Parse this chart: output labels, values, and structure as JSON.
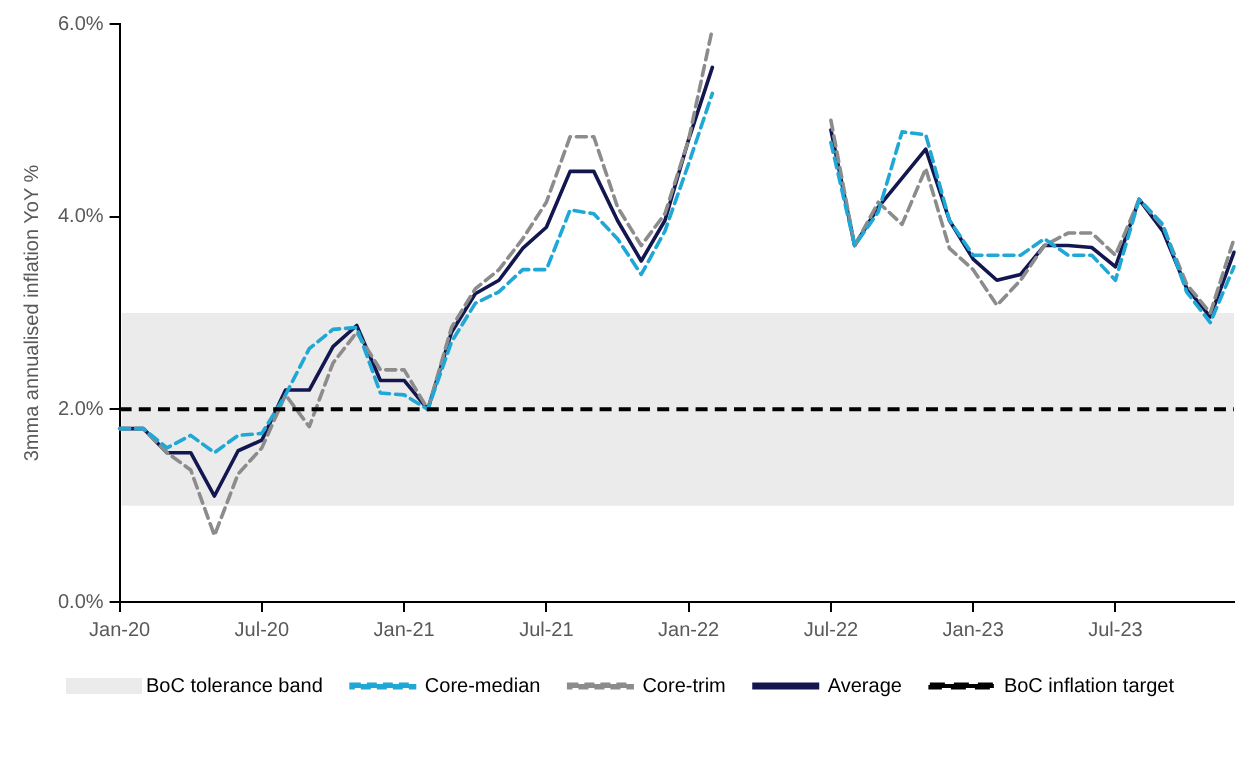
{
  "chart_data": {
    "type": "line",
    "ylabel": "3mma annualised inflation YoY %",
    "categories": [
      "Jan-20",
      null,
      null,
      null,
      null,
      null,
      "Jul-20",
      null,
      null,
      null,
      null,
      null,
      "Jan-21",
      null,
      null,
      null,
      null,
      null,
      "Jul-21",
      null,
      null,
      null,
      null,
      null,
      "Jan-22",
      null,
      null,
      null,
      null,
      null,
      "Jul-22",
      null,
      null,
      null,
      null,
      null,
      "Jan-23",
      null,
      null,
      null,
      null,
      null,
      "Jul-23",
      null,
      null,
      null,
      null,
      null
    ],
    "series": [
      {
        "name": "Core-median",
        "color": "#1fa7d6",
        "line_style": "dashed",
        "values": [
          1.8,
          1.8,
          1.6,
          1.73,
          1.55,
          1.73,
          1.75,
          2.15,
          2.63,
          2.83,
          2.85,
          2.17,
          2.15,
          2.0,
          2.7,
          3.1,
          3.22,
          3.45,
          3.45,
          4.07,
          4.03,
          3.77,
          3.4,
          3.85,
          4.55,
          5.28,
          null,
          null,
          null,
          null,
          4.77,
          3.7,
          4.05,
          4.88,
          4.85,
          3.96,
          3.6,
          3.6,
          3.6,
          3.77,
          3.6,
          3.6,
          3.34,
          4.18,
          3.92,
          3.22,
          2.9,
          3.48
        ]
      },
      {
        "name": "Core-trim",
        "color": "#8c8c8c",
        "line_style": "dashed",
        "values": [
          1.8,
          1.8,
          1.55,
          1.37,
          0.69,
          1.33,
          1.6,
          2.15,
          1.82,
          2.48,
          2.8,
          2.41,
          2.41,
          2.0,
          2.85,
          3.25,
          3.45,
          3.77,
          4.15,
          4.83,
          4.83,
          4.1,
          3.7,
          4.03,
          4.8,
          5.95,
          null,
          null,
          null,
          null,
          5.0,
          3.7,
          4.15,
          3.92,
          4.5,
          3.67,
          3.45,
          3.08,
          3.34,
          3.7,
          3.83,
          3.83,
          3.6,
          4.18,
          3.9,
          3.3,
          3.0,
          3.77
        ]
      },
      {
        "name": "Average",
        "color": "#14174f",
        "line_style": "solid",
        "values": [
          1.8,
          1.8,
          1.55,
          1.55,
          1.1,
          1.57,
          1.68,
          2.2,
          2.2,
          2.65,
          2.87,
          2.3,
          2.3,
          2.0,
          2.8,
          3.2,
          3.34,
          3.67,
          3.89,
          4.47,
          4.47,
          3.96,
          3.54,
          3.96,
          4.8,
          5.55,
          null,
          null,
          null,
          null,
          4.9,
          3.7,
          4.1,
          4.4,
          4.7,
          3.96,
          3.56,
          3.34,
          3.4,
          3.7,
          3.7,
          3.68,
          3.48,
          4.18,
          3.85,
          3.26,
          2.96,
          3.63
        ]
      }
    ],
    "ylim": [
      0,
      6
    ],
    "yticks": [
      {
        "value": 0,
        "label": "0.0%"
      },
      {
        "value": 2,
        "label": "2.0%"
      },
      {
        "value": 4,
        "label": "4.0%"
      },
      {
        "value": 6,
        "label": "6.0%"
      }
    ],
    "bands": [
      {
        "axis": "y",
        "from": 1,
        "to": 3,
        "label": "BoC tolerance band",
        "color": "#ebebeb"
      }
    ],
    "ref_lines": [
      {
        "axis": "y",
        "value": 2,
        "label": "BoC inflation target",
        "color": "#000000",
        "line_style": "dashed"
      }
    ],
    "legend": "bottom",
    "marker": "none"
  }
}
